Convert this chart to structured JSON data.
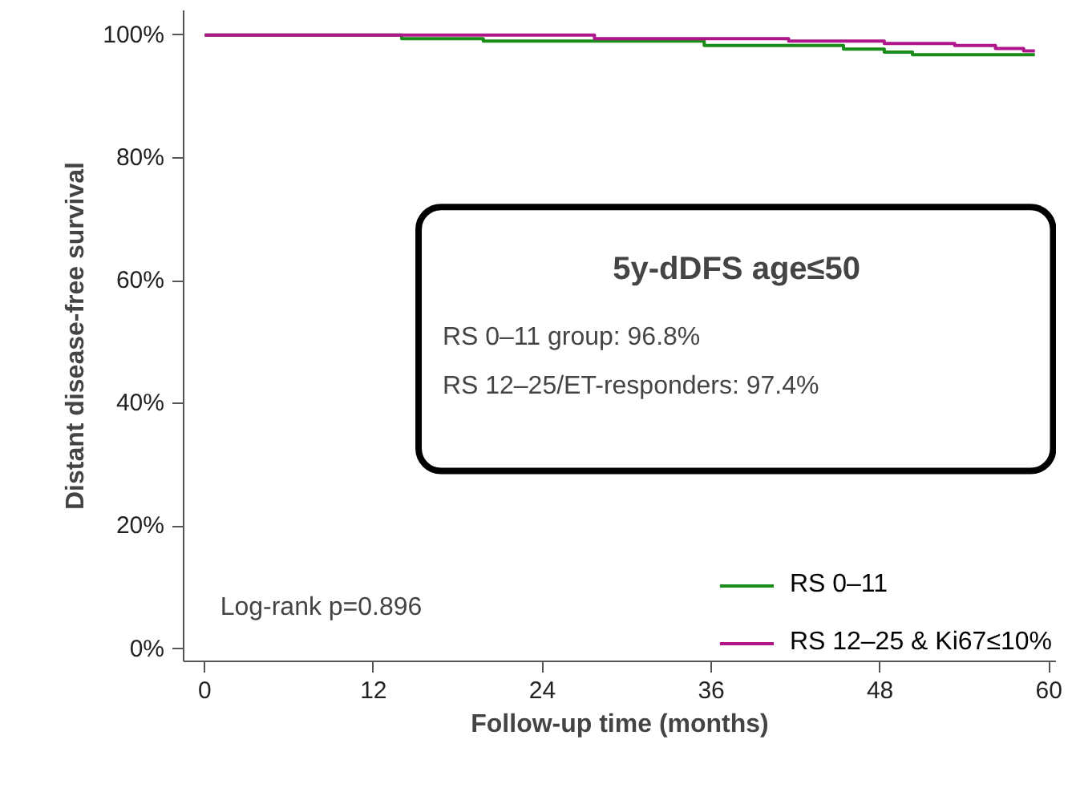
{
  "chart_data": {
    "type": "step",
    "xlabel": "Follow-up time (months)",
    "ylabel": "Distant disease-free survival",
    "xlim": [
      -1.5,
      60.5
    ],
    "ylim": [
      -2,
      104
    ],
    "xticks": [
      0,
      12,
      24,
      36,
      48,
      60
    ],
    "yticks": [
      {
        "value": 0,
        "label": "0%"
      },
      {
        "value": 20,
        "label": "20%"
      },
      {
        "value": 40,
        "label": "40%"
      },
      {
        "value": 60,
        "label": "60%"
      },
      {
        "value": 80,
        "label": "80%"
      },
      {
        "value": 100,
        "label": "100%"
      }
    ],
    "series": [
      {
        "name": "RS 0–11",
        "color": "#1a8c1a",
        "x": [
          0,
          14,
          19.8,
          35.5,
          45.4,
          48.3,
          50.3,
          59
        ],
        "values": [
          100,
          99.4,
          99.0,
          98.3,
          97.7,
          97.2,
          96.8,
          96.8
        ]
      },
      {
        "name": "RS 12–25 & Ki67≤10%",
        "color": "#b0168c",
        "x": [
          0,
          27.7,
          41.5,
          48.3,
          53.3,
          56.2,
          58.2,
          59
        ],
        "values": [
          100,
          99.4,
          99.0,
          98.6,
          98.3,
          97.8,
          97.4,
          97.4
        ]
      }
    ],
    "annotations": [
      "5y-dDFS age≤50",
      "RS 0–11 group: 96.8%",
      "RS 12–25/ET-responders: 97.4%",
      "Log-rank p=0.896"
    ],
    "legend": "bottom right",
    "grid": false
  }
}
